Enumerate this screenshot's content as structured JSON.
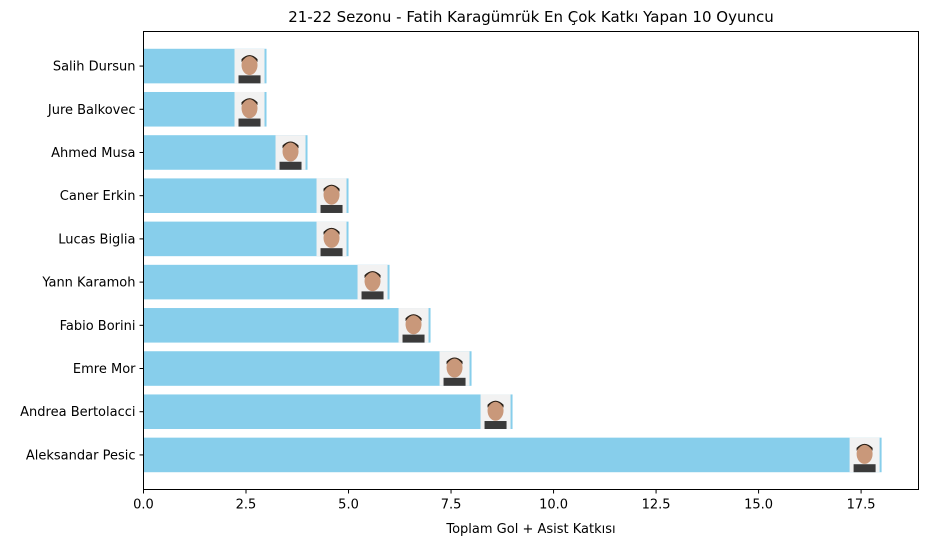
{
  "chart_data": {
    "type": "bar",
    "orientation": "horizontal",
    "title": "21-22 Sezonu - Fatih Karagümrük En Çok Katkı Yapan 10 Oyuncu",
    "xlabel": "Toplam Gol + Asist Katkısı",
    "ylabel": "",
    "xlim": [
      0,
      18.9
    ],
    "xticks": [
      0.0,
      2.5,
      5.0,
      7.5,
      10.0,
      12.5,
      15.0,
      17.5
    ],
    "xtick_labels": [
      "0.0",
      "2.5",
      "5.0",
      "7.5",
      "10.0",
      "12.5",
      "15.0",
      "17.5"
    ],
    "grid": false,
    "bar_color": "#87CEEB",
    "categories": [
      "Salih Dursun",
      "Jure Balkovec",
      "Ahmed Musa",
      "Caner Erkin",
      "Lucas Biglia",
      "Yann Karamoh",
      "Fabio Borini",
      "Emre Mor",
      "Andrea Bertolacci",
      "Aleksandar Pesic"
    ],
    "values": [
      3,
      3,
      4,
      5,
      5,
      6,
      7,
      8,
      9,
      18
    ],
    "bar_images": "player photo thumbnail at the end of each bar"
  }
}
